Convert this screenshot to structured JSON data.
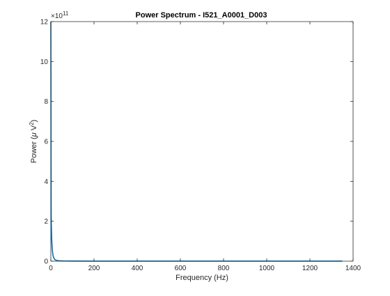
{
  "chart_data": {
    "type": "line",
    "title": "Power Spectrum - I521_A0001_D003",
    "xlabel": "Frequency (Hz)",
    "ylabel_base": "Power (",
    "ylabel_mu": "μ",
    "ylabel_unit": " V",
    "ylabel_sup": "2",
    "ylabel_close": ")",
    "xlim": [
      0,
      1400
    ],
    "ylim": [
      0,
      12
    ],
    "y_multiplier_base": "×10",
    "y_multiplier_exp": "11",
    "xticks": [
      0,
      200,
      400,
      600,
      800,
      1000,
      1200,
      1400
    ],
    "yticks": [
      0,
      2,
      4,
      6,
      8,
      10,
      12
    ],
    "grid": false,
    "series": [
      {
        "color": "#0072BD",
        "x": [
          0,
          0.5,
          1,
          1.5,
          2,
          3,
          4,
          5,
          6,
          7,
          8,
          9,
          10,
          12,
          14,
          16,
          18,
          20,
          25,
          30,
          40,
          60,
          100,
          200,
          400,
          600,
          800,
          1000,
          1200,
          1350
        ],
        "y": [
          12.0,
          9.5,
          5.0,
          2.3,
          1.9,
          1.5,
          1.1,
          0.9,
          0.7,
          0.55,
          0.45,
          0.35,
          0.3,
          0.22,
          0.16,
          0.12,
          0.09,
          0.07,
          0.05,
          0.03,
          0.02,
          0.01,
          0.005,
          0.003,
          0.002,
          0.002,
          0.001,
          0.001,
          0.001,
          0.001
        ]
      }
    ]
  }
}
